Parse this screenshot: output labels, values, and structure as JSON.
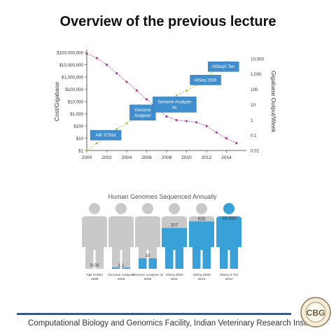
{
  "slide": {
    "title": "Overview of the previous lecture",
    "footer": "Computational Biology and Genomics Facility, Indian Veterinary Research Institute",
    "logo_text": "CBG",
    "logo_ring_text": "COMPUTATIONAL BIOLOGY AND GENOMICS FACILITY"
  },
  "colors": {
    "cost_line": "#b03a9a",
    "output_line": "#9acd32",
    "box_fill": "#3f8fd0",
    "human_grey": "#c9c9c9",
    "human_blue": "#3aa0d8",
    "accent_bar": "#1f5fa8"
  },
  "chart_data": [
    {
      "type": "line",
      "title": "",
      "xlabel": "",
      "ylabel": "Cost/Gigabase",
      "y2label": "Gigabase Output/Week",
      "x_ticks": [
        "2000",
        "2002",
        "2004",
        "2006",
        "2008",
        "2010",
        "2012",
        "2014"
      ],
      "y_ticks": [
        "$100,000,000",
        "$10,000,000",
        "$1,000,000",
        "$100,000",
        "$10,000",
        "$1,000",
        "$100",
        "$10",
        "$1"
      ],
      "y2_ticks": [
        "10,000",
        "1,000",
        "100",
        "10",
        "1",
        "0.1",
        "0.01"
      ],
      "xlim": [
        2000,
        2016
      ],
      "ylim_log10": [
        0,
        8
      ],
      "y2lim_log10": [
        -2,
        4.4
      ],
      "series": [
        {
          "role": "cost",
          "points": [
            [
              2000,
              80000000
            ],
            [
              2001,
              35000000
            ],
            [
              2002,
              10000000
            ],
            [
              2003,
              2000000
            ],
            [
              2004,
              400000
            ],
            [
              2005,
              80000
            ],
            [
              2006,
              15000
            ],
            [
              2007,
              3000
            ],
            [
              2008,
              600
            ],
            [
              2009,
              300
            ],
            [
              2010,
              250
            ],
            [
              2011,
              200
            ],
            [
              2012,
              100
            ],
            [
              2013,
              30
            ],
            [
              2014,
              10
            ],
            [
              2015,
              4
            ]
          ]
        },
        {
          "role": "output",
          "points": [
            [
              2000,
              0.01
            ],
            [
              2001,
              0.03
            ],
            [
              2002,
              0.1
            ],
            [
              2003,
              0.25
            ],
            [
              2004,
              0.6
            ],
            [
              2005,
              1.5
            ],
            [
              2006,
              4
            ],
            [
              2007,
              8
            ],
            [
              2008,
              15
            ],
            [
              2009,
              40
            ],
            [
              2010,
              80
            ],
            [
              2011,
              200
            ],
            [
              2012,
              600
            ],
            [
              2013,
              2000
            ],
            [
              2014,
              6000
            ]
          ]
        }
      ],
      "annotations": [
        {
          "label": "ABI 3730xl",
          "x": 2001.9,
          "y2": 0.1
        },
        {
          "label": "Genome Analyzer",
          "x": 2005.6,
          "y2": 3
        },
        {
          "label": "Genome Analyzer IIx",
          "x": 2008.8,
          "y2": 10
        },
        {
          "label": "HiSeq 2500",
          "x": 2011.9,
          "y2": 400
        },
        {
          "label": "HiSeqX Ten",
          "x": 2013.7,
          "y2": 3000
        }
      ],
      "grid": false
    },
    {
      "type": "bar",
      "title": "Human Genomes Sequenced Annually",
      "categories": [
        {
          "name": "ABI 3730xl",
          "year": "1999"
        },
        {
          "name": "Genome Analyzer",
          "year": "2005"
        },
        {
          "name": "Genome Analyzer IIx",
          "year": "2009"
        },
        {
          "name": "HiSeq 2000",
          "year": "2011"
        },
        {
          "name": "HiSeq 2500",
          "year": "2013"
        },
        {
          "name": "HiSeq X Ten",
          "year": "2014"
        }
      ],
      "value_labels": [
        "0.00",
        "1.1",
        "10",
        "207",
        "625",
        "18,000"
      ],
      "fill_fraction": [
        0.0,
        0.02,
        0.16,
        0.62,
        0.72,
        1.0
      ]
    }
  ]
}
